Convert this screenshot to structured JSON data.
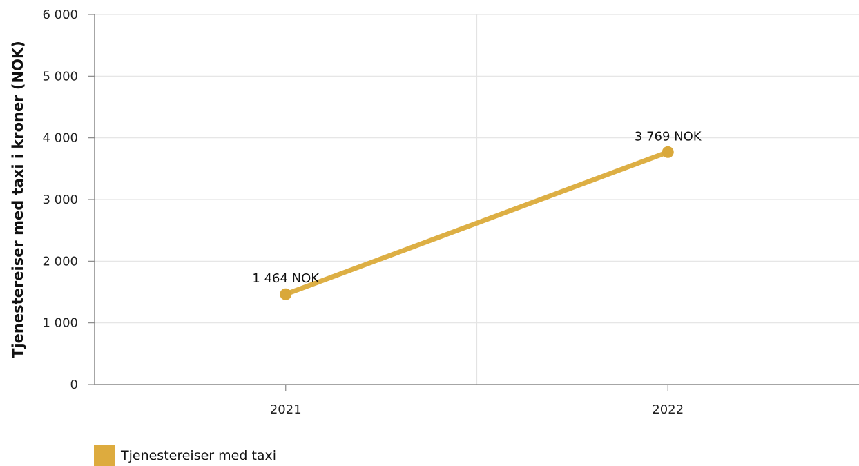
{
  "chart_data": {
    "type": "line",
    "categories": [
      "2021",
      "2022"
    ],
    "series": [
      {
        "name": "Tjenestereiser med taxi",
        "values": [
          1464,
          3769
        ],
        "data_labels": [
          "1 464 NOK",
          "3 769 NOK"
        ],
        "color": "#DDAF44"
      }
    ],
    "ylabel": "Tjenestereiser med taxi i kroner (NOK)",
    "ylim": [
      0,
      6000
    ],
    "yticks": [
      0,
      1000,
      2000,
      3000,
      4000,
      5000,
      6000
    ],
    "ytick_labels": [
      "0",
      "1 000",
      "2 000",
      "3 000",
      "4 000",
      "5 000",
      "6 000"
    ],
    "grid": true,
    "legend_position": "bottom-left",
    "colors": {
      "line": "#DDAF44",
      "marker": "#D9A83A",
      "swatch": "#DDAB3E",
      "grid": "#E3E3E3",
      "axis": "#888888"
    }
  }
}
